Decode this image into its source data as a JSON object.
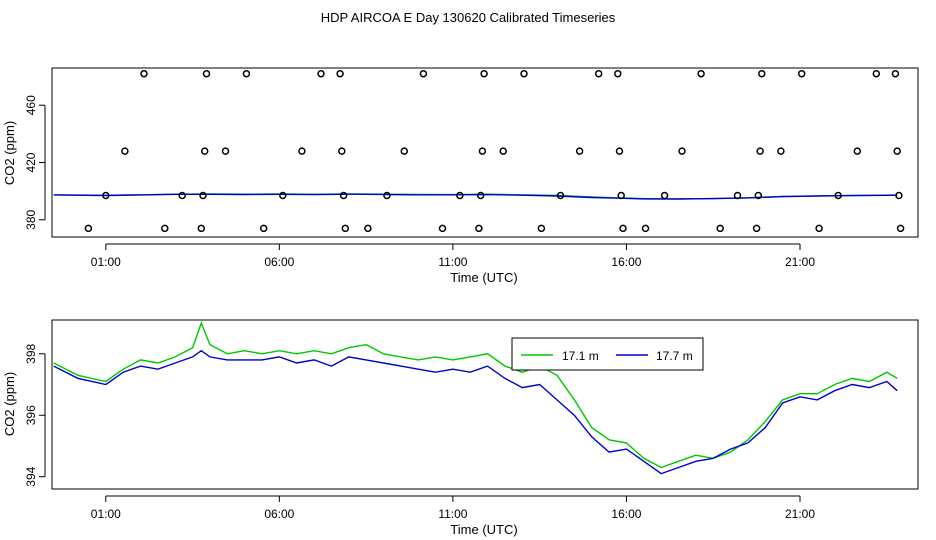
{
  "title": "HDP AIRCOA E  Day 130620  Calibrated Timeseries",
  "colors": {
    "axis": "#000000",
    "series_green": "#00c800",
    "series_blue": "#0000cc",
    "points": "#000000"
  },
  "chart_data": [
    {
      "type": "scatter",
      "xlabel": "Time (UTC)",
      "ylabel": "CO2 (ppm)",
      "xlim": [
        -0.55,
        24.4
      ],
      "ylim": [
        368,
        486
      ],
      "x_ticks": [
        1,
        6,
        11,
        16,
        21
      ],
      "x_tick_labels": [
        "01:00",
        "06:00",
        "11:00",
        "16:00",
        "21:00"
      ],
      "y_ticks": [
        380,
        420,
        460
      ],
      "y_tick_labels": [
        "380",
        "420",
        "460"
      ],
      "grid": false,
      "points": [
        {
          "x": 0.5,
          "y": 374
        },
        {
          "x": 1.0,
          "y": 397
        },
        {
          "x": 1.55,
          "y": 428
        },
        {
          "x": 2.1,
          "y": 482
        },
        {
          "x": 2.7,
          "y": 374
        },
        {
          "x": 3.2,
          "y": 397
        },
        {
          "x": 3.75,
          "y": 374
        },
        {
          "x": 3.8,
          "y": 397
        },
        {
          "x": 3.85,
          "y": 428
        },
        {
          "x": 3.9,
          "y": 482
        },
        {
          "x": 4.45,
          "y": 428
        },
        {
          "x": 5.05,
          "y": 482
        },
        {
          "x": 5.55,
          "y": 374
        },
        {
          "x": 6.1,
          "y": 397
        },
        {
          "x": 6.65,
          "y": 428
        },
        {
          "x": 7.2,
          "y": 482
        },
        {
          "x": 7.75,
          "y": 482
        },
        {
          "x": 7.8,
          "y": 428
        },
        {
          "x": 7.85,
          "y": 397
        },
        {
          "x": 7.9,
          "y": 374
        },
        {
          "x": 8.55,
          "y": 374
        },
        {
          "x": 9.1,
          "y": 397
        },
        {
          "x": 9.6,
          "y": 428
        },
        {
          "x": 10.15,
          "y": 482
        },
        {
          "x": 10.7,
          "y": 374
        },
        {
          "x": 11.2,
          "y": 397
        },
        {
          "x": 11.75,
          "y": 374
        },
        {
          "x": 11.8,
          "y": 397
        },
        {
          "x": 11.85,
          "y": 428
        },
        {
          "x": 11.9,
          "y": 482
        },
        {
          "x": 12.45,
          "y": 428
        },
        {
          "x": 13.05,
          "y": 482
        },
        {
          "x": 13.55,
          "y": 374
        },
        {
          "x": 14.1,
          "y": 397
        },
        {
          "x": 14.65,
          "y": 428
        },
        {
          "x": 15.2,
          "y": 482
        },
        {
          "x": 15.75,
          "y": 482
        },
        {
          "x": 15.8,
          "y": 428
        },
        {
          "x": 15.85,
          "y": 397
        },
        {
          "x": 15.9,
          "y": 374
        },
        {
          "x": 16.55,
          "y": 374
        },
        {
          "x": 17.1,
          "y": 397
        },
        {
          "x": 17.6,
          "y": 428
        },
        {
          "x": 18.15,
          "y": 482
        },
        {
          "x": 18.7,
          "y": 374
        },
        {
          "x": 19.2,
          "y": 397
        },
        {
          "x": 19.75,
          "y": 374
        },
        {
          "x": 19.8,
          "y": 397
        },
        {
          "x": 19.85,
          "y": 428
        },
        {
          "x": 19.9,
          "y": 482
        },
        {
          "x": 20.45,
          "y": 428
        },
        {
          "x": 21.05,
          "y": 482
        },
        {
          "x": 21.55,
          "y": 374
        },
        {
          "x": 22.1,
          "y": 397
        },
        {
          "x": 22.65,
          "y": 428
        },
        {
          "x": 23.2,
          "y": 482
        },
        {
          "x": 23.75,
          "y": 482
        },
        {
          "x": 23.8,
          "y": 428
        },
        {
          "x": 23.85,
          "y": 397
        },
        {
          "x": 23.9,
          "y": 374
        }
      ],
      "series": [
        {
          "x": [
            -0.5,
            1,
            2,
            3,
            4,
            5,
            6,
            7,
            8,
            9,
            10,
            11,
            12,
            13,
            14,
            15,
            15.8,
            16.5,
            17.5,
            18.5,
            19.5,
            20.5,
            21.5,
            22.5,
            23.8
          ],
          "y": [
            397.5,
            397.1,
            397.5,
            397.9,
            398.0,
            397.9,
            398.0,
            397.8,
            398.1,
            397.9,
            397.7,
            397.6,
            397.9,
            397.5,
            397.1,
            395.9,
            395.3,
            394.8,
            394.6,
            394.8,
            395.4,
            396.3,
            396.7,
            397.0,
            397.3
          ]
        },
        {
          "x": [
            -0.5,
            1,
            2,
            3,
            4,
            5,
            6,
            7,
            8,
            9,
            10,
            11,
            12,
            13,
            14,
            15,
            15.8,
            16.5,
            17.5,
            18.5,
            19.5,
            20.5,
            21.5,
            22.5,
            23.8
          ],
          "y": [
            397.4,
            397.0,
            397.4,
            397.8,
            397.8,
            397.7,
            397.8,
            397.6,
            397.9,
            397.7,
            397.5,
            397.5,
            397.6,
            397.2,
            396.6,
            395.6,
            395.1,
            394.6,
            394.5,
            394.8,
            395.3,
            396.2,
            396.6,
            396.9,
            397.1
          ]
        }
      ]
    },
    {
      "type": "line",
      "xlabel": "Time (UTC)",
      "ylabel": "CO2 (ppm)",
      "xlim": [
        -0.55,
        24.4
      ],
      "ylim": [
        393.6,
        399.1
      ],
      "x_ticks": [
        1,
        6,
        11,
        16,
        21
      ],
      "x_tick_labels": [
        "01:00",
        "06:00",
        "11:00",
        "16:00",
        "21:00"
      ],
      "y_ticks": [
        394,
        396,
        398
      ],
      "y_tick_labels": [
        "394",
        "396",
        "398"
      ],
      "grid": false,
      "legend_position": "top-center-right",
      "series": [
        {
          "name": "17.1 m",
          "x": [
            -0.5,
            0.2,
            1,
            1.5,
            2,
            2.5,
            3,
            3.5,
            3.75,
            4,
            4.5,
            5,
            5.5,
            6,
            6.5,
            7,
            7.5,
            8,
            8.5,
            9,
            9.5,
            10,
            10.5,
            11,
            11.5,
            12,
            12.5,
            13,
            13.5,
            14,
            14.5,
            15,
            15.5,
            16,
            16.5,
            17,
            17.5,
            18,
            18.5,
            19,
            19.5,
            20,
            20.5,
            21,
            21.5,
            22,
            22.5,
            23,
            23.5,
            23.8
          ],
          "y": [
            397.7,
            397.3,
            397.1,
            397.5,
            397.8,
            397.7,
            397.9,
            398.2,
            399.0,
            398.3,
            398.0,
            398.1,
            398.0,
            398.1,
            398.0,
            398.1,
            398.0,
            398.2,
            398.3,
            398.0,
            397.9,
            397.8,
            397.9,
            397.8,
            397.9,
            398.0,
            397.6,
            397.4,
            397.6,
            397.3,
            396.5,
            395.6,
            395.2,
            395.1,
            394.6,
            394.3,
            394.5,
            394.7,
            394.6,
            394.8,
            395.2,
            395.8,
            396.5,
            396.7,
            396.7,
            397.0,
            397.2,
            397.1,
            397.4,
            397.2
          ]
        },
        {
          "name": "17.7 m",
          "x": [
            -0.5,
            0.2,
            1,
            1.5,
            2,
            2.5,
            3,
            3.5,
            3.75,
            4,
            4.5,
            5,
            5.5,
            6,
            6.5,
            7,
            7.5,
            8,
            8.5,
            9,
            9.5,
            10,
            10.5,
            11,
            11.5,
            12,
            12.5,
            13,
            13.5,
            14,
            14.5,
            15,
            15.5,
            16,
            16.5,
            17,
            17.5,
            18,
            18.5,
            19,
            19.5,
            20,
            20.5,
            21,
            21.5,
            22,
            22.5,
            23,
            23.5,
            23.8
          ],
          "y": [
            397.6,
            397.2,
            397.0,
            397.4,
            397.6,
            397.5,
            397.7,
            397.9,
            398.1,
            397.9,
            397.8,
            397.8,
            397.8,
            397.9,
            397.7,
            397.8,
            397.6,
            397.9,
            397.8,
            397.7,
            397.6,
            397.5,
            397.4,
            397.5,
            397.4,
            397.6,
            397.2,
            396.9,
            397.0,
            396.5,
            396.0,
            395.3,
            394.8,
            394.9,
            394.5,
            394.1,
            394.3,
            394.5,
            394.6,
            394.9,
            395.1,
            395.6,
            396.4,
            396.6,
            396.5,
            396.8,
            397.0,
            396.9,
            397.1,
            396.8
          ]
        }
      ]
    }
  ]
}
